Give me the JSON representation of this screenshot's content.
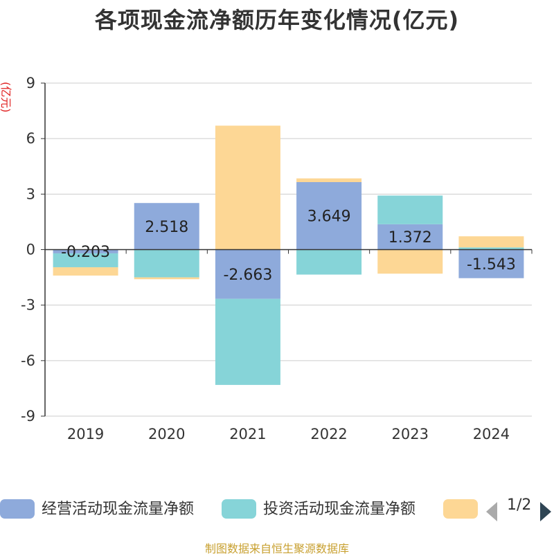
{
  "title": "各项现金流净额历年变化情况(亿元)",
  "y_unit_label": "(亿元)",
  "source_note": "制图数据来自恒生聚源数据库",
  "legend": {
    "items": [
      {
        "label": "经营活动现金流量净额",
        "color": "#8eaadb"
      },
      {
        "label": "投资活动现金流量净额",
        "color": "#86d4d8"
      },
      {
        "label": "",
        "color": "#fdd795"
      }
    ],
    "page_indicator": "1/2"
  },
  "chart_data": {
    "type": "bar",
    "stacked": true,
    "categories": [
      "2019",
      "2020",
      "2021",
      "2022",
      "2023",
      "2024"
    ],
    "ylim": [
      -9,
      9
    ],
    "yticks": [
      9,
      6,
      3,
      0,
      -3,
      -6,
      -9
    ],
    "grid": true,
    "legend_position": "bottom",
    "series": [
      {
        "name": "经营活动现金流量净额",
        "color": "#8eaadb",
        "values": [
          -0.203,
          2.518,
          -2.663,
          3.649,
          1.372,
          -1.543
        ],
        "labels": [
          "-0.203",
          "2.518",
          "-2.663",
          "3.649",
          "1.372",
          "-1.543"
        ]
      },
      {
        "name": "投资活动现金流量净额",
        "color": "#86d4d8",
        "values": [
          -0.75,
          -1.5,
          -4.65,
          -1.35,
          1.55,
          0.12
        ]
      },
      {
        "name": "",
        "color": "#fdd795",
        "values": [
          -0.45,
          -0.1,
          6.7,
          0.2,
          -1.3,
          0.6
        ]
      }
    ]
  }
}
